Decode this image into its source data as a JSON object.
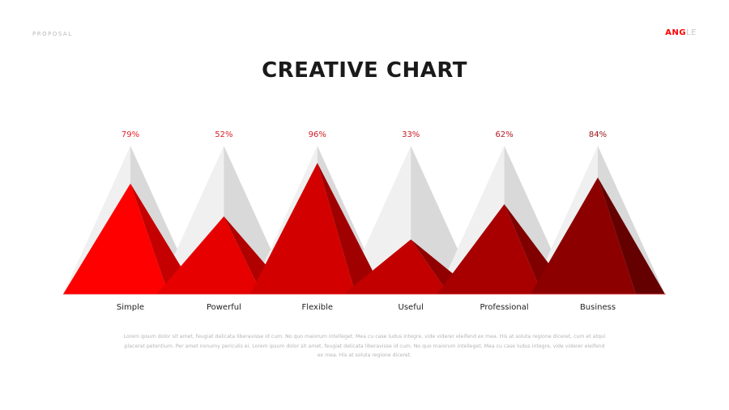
{
  "header": {
    "tag": "PROPOSAL",
    "brand_primary": "ANG",
    "brand_secondary": "LE"
  },
  "title": "CREATIVE CHART",
  "chart_data": {
    "type": "bar",
    "style": "triangle",
    "categories": [
      "Simple",
      "Powerful",
      "Flexible",
      "Useful",
      "Professional",
      "Business"
    ],
    "values": [
      79,
      52,
      96,
      33,
      62,
      84
    ],
    "labels": [
      "79%",
      "52%",
      "96%",
      "33%",
      "62%",
      "84%"
    ],
    "ylim": [
      0,
      100
    ],
    "grid": false,
    "colors": [
      "#ff0000",
      "#e60000",
      "#d30000",
      "#c20000",
      "#a80000",
      "#8c0000"
    ],
    "dark_colors": [
      "#c40000",
      "#b00000",
      "#a00000",
      "#900000",
      "#800000",
      "#640000"
    ],
    "label_colors": [
      "#e8202a",
      "#d8202a",
      "#d01c24",
      "#c81c24",
      "#b01820",
      "#981418"
    ],
    "background_color_light": "#f0f0f0",
    "background_color_dark": "#d9d9d9"
  },
  "body_text": "Lorem ipsum dolor sit amet, feugiat delicata liberavisse id cum. No quo maiorum intelleget. Mea cu case ludus integre, vide viderer eleifend ex mea. His at soluta regione diceret, cum et atqui placerat petentium. Per amet nonumy periculis ei. Lorem ipsum dolor sit amet, feugiat delicata liberavisse id cum. No quo maiorum intelleget. Mea cu case ludus integre, vide viderer eleifend ex mea. His at soluta regione diceret."
}
